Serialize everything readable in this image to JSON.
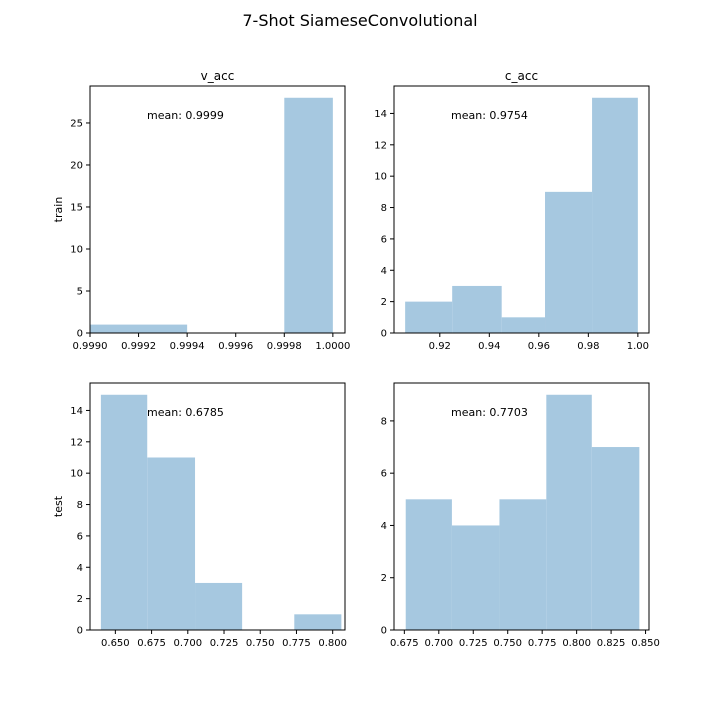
{
  "figure": {
    "suptitle": "7-Shot SiameseConvolutional"
  },
  "style": {
    "bar_color": "#a6c8e0",
    "frame_color": "#000000",
    "background": "#ffffff"
  },
  "chart_data": [
    {
      "type": "histogram",
      "title": "v_acc",
      "ylabel": "train",
      "annotation": "mean: 0.9999",
      "xlim": [
        0.999,
        1.00005
      ],
      "ylim": [
        0,
        29.4
      ],
      "xticks": [
        0.999,
        0.9992,
        0.9994,
        0.9996,
        0.9998,
        1.0
      ],
      "xtick_labels": [
        "0.9990",
        "0.9992",
        "0.9994",
        "0.9996",
        "0.9998",
        "1.0000"
      ],
      "yticks": [
        0,
        5,
        10,
        15,
        20,
        25
      ],
      "ytick_labels": [
        "0",
        "5",
        "10",
        "15",
        "20",
        "25"
      ],
      "bins": [
        {
          "x0": 0.999,
          "x1": 0.9994,
          "count": 1
        },
        {
          "x0": 0.9998,
          "x1": 1.0,
          "count": 28
        }
      ]
    },
    {
      "type": "histogram",
      "title": "c_acc",
      "ylabel": "",
      "annotation": "mean: 0.9754",
      "xlim": [
        0.9015,
        1.0045
      ],
      "ylim": [
        0,
        15.75
      ],
      "xticks": [
        0.92,
        0.94,
        0.96,
        0.98,
        1.0
      ],
      "xtick_labels": [
        "0.92",
        "0.94",
        "0.96",
        "0.98",
        "1.00"
      ],
      "yticks": [
        0,
        2,
        4,
        6,
        8,
        10,
        12,
        14
      ],
      "ytick_labels": [
        "0",
        "2",
        "4",
        "6",
        "8",
        "10",
        "12",
        "14"
      ],
      "bins": [
        {
          "x0": 0.906,
          "x1": 0.925,
          "count": 2
        },
        {
          "x0": 0.925,
          "x1": 0.945,
          "count": 3
        },
        {
          "x0": 0.945,
          "x1": 0.9625,
          "count": 1
        },
        {
          "x0": 0.9625,
          "x1": 0.9815,
          "count": 9
        },
        {
          "x0": 0.9815,
          "x1": 1.0,
          "count": 15
        }
      ]
    },
    {
      "type": "histogram",
      "title": "",
      "ylabel": "test",
      "annotation": "mean: 0.6785",
      "xlim": [
        0.6325,
        0.8085
      ],
      "ylim": [
        0,
        15.75
      ],
      "xticks": [
        0.65,
        0.675,
        0.7,
        0.725,
        0.75,
        0.775,
        0.8
      ],
      "xtick_labels": [
        "0.650",
        "0.675",
        "0.700",
        "0.725",
        "0.750",
        "0.775",
        "0.800"
      ],
      "yticks": [
        0,
        2,
        4,
        6,
        8,
        10,
        12,
        14
      ],
      "ytick_labels": [
        "0",
        "2",
        "4",
        "6",
        "8",
        "10",
        "12",
        "14"
      ],
      "bins": [
        {
          "x0": 0.64,
          "x1": 0.672,
          "count": 15
        },
        {
          "x0": 0.672,
          "x1": 0.705,
          "count": 11
        },
        {
          "x0": 0.705,
          "x1": 0.7375,
          "count": 3
        },
        {
          "x0": 0.7735,
          "x1": 0.806,
          "count": 1
        }
      ]
    },
    {
      "type": "histogram",
      "title": "",
      "ylabel": "",
      "annotation": "mean: 0.7703",
      "xlim": [
        0.6675,
        0.8525
      ],
      "ylim": [
        0,
        9.45
      ],
      "xticks": [
        0.675,
        0.7,
        0.725,
        0.75,
        0.775,
        0.8,
        0.825,
        0.85
      ],
      "xtick_labels": [
        "0.675",
        "0.700",
        "0.725",
        "0.750",
        "0.775",
        "0.800",
        "0.825",
        "0.850"
      ],
      "yticks": [
        0,
        2,
        4,
        6,
        8
      ],
      "ytick_labels": [
        "0",
        "2",
        "4",
        "6",
        "8"
      ],
      "bins": [
        {
          "x0": 0.676,
          "x1": 0.7095,
          "count": 5
        },
        {
          "x0": 0.7095,
          "x1": 0.744,
          "count": 4
        },
        {
          "x0": 0.744,
          "x1": 0.778,
          "count": 5
        },
        {
          "x0": 0.778,
          "x1": 0.811,
          "count": 9
        },
        {
          "x0": 0.811,
          "x1": 0.8455,
          "count": 7
        }
      ]
    }
  ]
}
